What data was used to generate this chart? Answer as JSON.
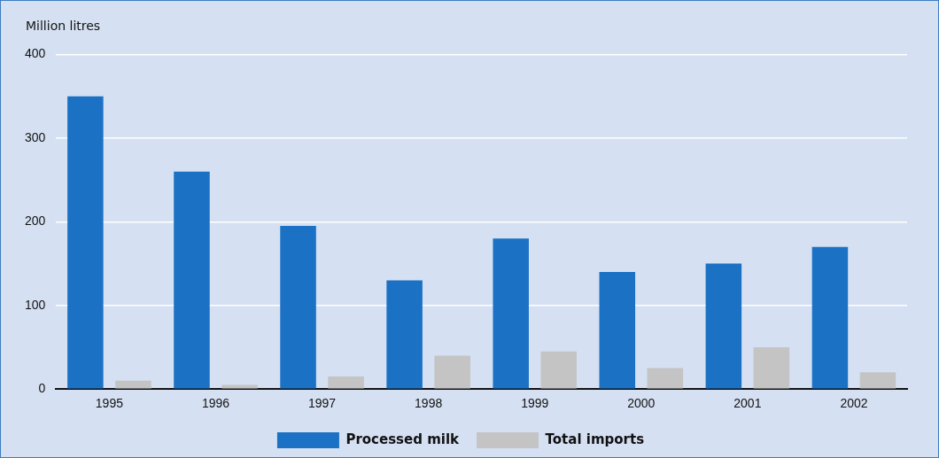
{
  "chart_data": {
    "type": "bar",
    "ylabel": "Million litres",
    "categories": [
      "1995",
      "1996",
      "1997",
      "1998",
      "1999",
      "2000",
      "2001",
      "2002"
    ],
    "series": [
      {
        "name": "Processed milk",
        "color": "#1b72c4",
        "values": [
          350,
          260,
          195,
          130,
          180,
          140,
          150,
          170
        ]
      },
      {
        "name": "Total imports",
        "color": "#c4c4c4",
        "values": [
          10,
          5,
          15,
          40,
          45,
          25,
          50,
          20
        ]
      }
    ],
    "ylim": [
      0,
      400
    ],
    "yticks": [
      0,
      100,
      200,
      300,
      400
    ],
    "grid": "y",
    "legend": "bottom"
  }
}
